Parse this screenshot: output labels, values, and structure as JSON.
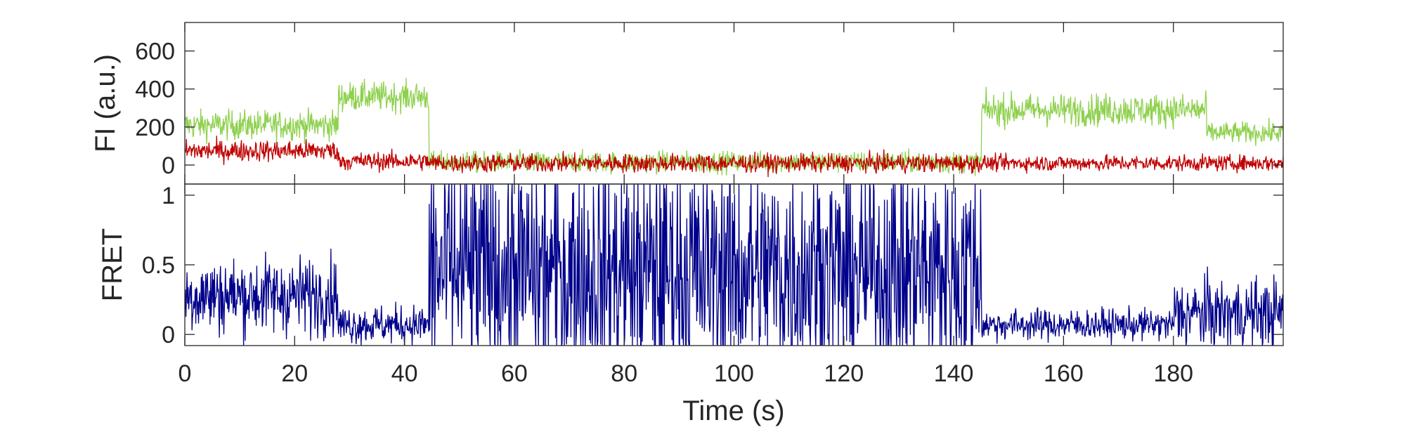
{
  "chart_data": [
    {
      "type": "line",
      "ylabel": "FI (a.u.)",
      "xlim": [
        0,
        200
      ],
      "ylim": [
        -100,
        750
      ],
      "yticks": [
        0,
        200,
        400,
        600
      ],
      "grid": false,
      "legend": "none",
      "series": [
        {
          "color": "#8fd14f",
          "segments": [
            {
              "x": [
                0,
                28
              ],
              "level": 210,
              "noise": 55
            },
            {
              "x": [
                28,
                44.5
              ],
              "level": 360,
              "noise": 55
            },
            {
              "x": [
                44.5,
                145
              ],
              "level": 15,
              "noise": 40
            },
            {
              "x": [
                145,
                186
              ],
              "level": 290,
              "noise": 60
            },
            {
              "x": [
                186,
                200
              ],
              "level": 170,
              "noise": 40
            }
          ]
        },
        {
          "color": "#c00000",
          "segments": [
            {
              "x": [
                0,
                28
              ],
              "level": 75,
              "noise": 40
            },
            {
              "x": [
                28,
                44.5
              ],
              "level": 20,
              "noise": 35
            },
            {
              "x": [
                44.5,
                145
              ],
              "level": 10,
              "noise": 35
            },
            {
              "x": [
                145,
                200
              ],
              "level": 10,
              "noise": 30
            }
          ]
        }
      ]
    },
    {
      "type": "line",
      "ylabel": "FRET",
      "xlabel": "Time (s)",
      "xlim": [
        0,
        200
      ],
      "ylim": [
        -0.08,
        1.08
      ],
      "xticks": [
        0,
        20,
        40,
        60,
        80,
        100,
        120,
        140,
        160,
        180
      ],
      "yticks": [
        0,
        0.5,
        1
      ],
      "grid": false,
      "legend": "none",
      "series": [
        {
          "color": "#00008b",
          "segments": [
            {
              "x": [
                0,
                28
              ],
              "level": 0.28,
              "noise": 0.2
            },
            {
              "x": [
                28,
                44.5
              ],
              "level": 0.07,
              "noise": 0.1
            },
            {
              "x": [
                44.5,
                145
              ],
              "level": 0.45,
              "noise": 0.6
            },
            {
              "x": [
                145,
                180
              ],
              "level": 0.07,
              "noise": 0.08
            },
            {
              "x": [
                180,
                200
              ],
              "level": 0.15,
              "noise": 0.18
            }
          ]
        }
      ]
    }
  ]
}
